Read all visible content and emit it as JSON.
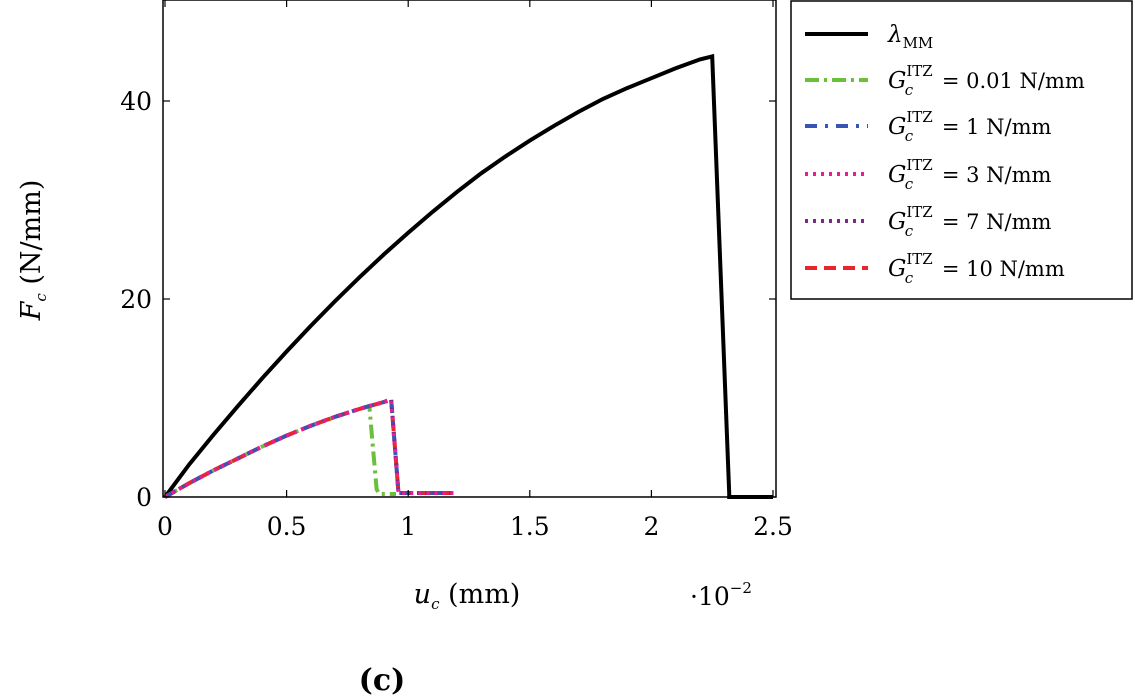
{
  "chart_data": {
    "type": "line",
    "title": "",
    "panel_label": "(c)",
    "xlabel": {
      "symbol": "u",
      "subscript": "c",
      "unit": " (mm)"
    },
    "ylabel": {
      "symbol": "F",
      "subscript": "c",
      "unit": " (N/mm)"
    },
    "x_scale_note": {
      "prefix": "·10",
      "exponent": "−2"
    },
    "xlim": [
      0,
      2.5
    ],
    "ylim": [
      0,
      50
    ],
    "xticks": [
      0,
      0.5,
      1,
      1.5,
      2,
      2.5
    ],
    "xtick_labels": [
      "0",
      "0.5",
      "1",
      "1.5",
      "2",
      "2.5"
    ],
    "yticks": [
      0,
      20,
      40
    ],
    "ytick_labels": [
      "0",
      "20",
      "40"
    ],
    "grid": false,
    "legend_position": "outside-right-top",
    "series": [
      {
        "name": "λMM",
        "legend_symbol": "λ",
        "legend_sub": "MM",
        "legend_rest": "",
        "color": "#000000",
        "dash": "solid",
        "width": 4,
        "x": [
          0,
          0.1,
          0.2,
          0.3,
          0.4,
          0.5,
          0.6,
          0.7,
          0.8,
          0.9,
          1.0,
          1.1,
          1.2,
          1.3,
          1.4,
          1.5,
          1.6,
          1.7,
          1.8,
          1.9,
          2.0,
          2.1,
          2.2,
          2.25,
          2.32,
          2.32,
          2.5
        ],
        "y": [
          0,
          3.3,
          6.3,
          9.2,
          12.0,
          14.7,
          17.3,
          19.8,
          22.2,
          24.5,
          26.7,
          28.8,
          30.8,
          32.7,
          34.4,
          36.0,
          37.5,
          38.9,
          40.2,
          41.3,
          42.3,
          43.3,
          44.2,
          44.5,
          0.4,
          0,
          0
        ]
      },
      {
        "name": "G_c^ITZ = 0.01 N/mm",
        "legend_symbol": "G",
        "legend_sub": "c",
        "legend_sup": "ITZ",
        "legend_rest": " = 0.01 N/mm",
        "color": "#6bbf3a",
        "dash": "dashdot",
        "width": 4,
        "x": [
          0,
          0.1,
          0.2,
          0.3,
          0.4,
          0.5,
          0.6,
          0.7,
          0.8,
          0.84,
          0.87,
          0.88,
          0.95
        ],
        "y": [
          0,
          1.4,
          2.7,
          3.9,
          5.1,
          6.2,
          7.2,
          8.1,
          8.9,
          9.2,
          0.8,
          0.3,
          0.3
        ]
      },
      {
        "name": "G_c^ITZ = 1 N/mm",
        "legend_symbol": "G",
        "legend_sub": "c",
        "legend_sup": "ITZ",
        "legend_rest": " = 1 N/mm",
        "color": "#3a54b4",
        "dash": "dashdotwide",
        "width": 4,
        "x": [
          0,
          0.1,
          0.2,
          0.3,
          0.4,
          0.5,
          0.6,
          0.7,
          0.8,
          0.9,
          0.93,
          0.96,
          1.0,
          1.1,
          1.2
        ],
        "y": [
          0,
          1.4,
          2.7,
          3.9,
          5.1,
          6.2,
          7.2,
          8.1,
          8.9,
          9.6,
          9.8,
          0.4,
          0.4,
          0.4,
          0.4
        ]
      },
      {
        "name": "G_c^ITZ = 3 N/mm",
        "legend_symbol": "G",
        "legend_sub": "c",
        "legend_sup": "ITZ",
        "legend_rest": " = 3 N/mm",
        "color": "#ec1b8f",
        "dash": "dotted",
        "width": 4,
        "x": [
          0,
          0.1,
          0.2,
          0.3,
          0.4,
          0.5,
          0.6,
          0.7,
          0.8,
          0.9,
          0.93,
          0.96,
          1.0,
          1.1,
          1.2
        ],
        "y": [
          0,
          1.4,
          2.7,
          3.9,
          5.1,
          6.2,
          7.2,
          8.1,
          8.9,
          9.6,
          9.8,
          0.4,
          0.4,
          0.4,
          0.4
        ]
      },
      {
        "name": "G_c^ITZ = 7 N/mm",
        "legend_symbol": "G",
        "legend_sub": "c",
        "legend_sup": "ITZ",
        "legend_rest": " = 7 N/mm",
        "color": "#7b2a8a",
        "dash": "dotted",
        "width": 4,
        "x": [
          0,
          0.1,
          0.2,
          0.3,
          0.4,
          0.5,
          0.6,
          0.7,
          0.8,
          0.9,
          0.93,
          0.96,
          1.0,
          1.1,
          1.2
        ],
        "y": [
          0,
          1.4,
          2.7,
          3.9,
          5.1,
          6.2,
          7.2,
          8.1,
          8.9,
          9.6,
          9.9,
          0.4,
          0.4,
          0.4,
          0.4
        ]
      },
      {
        "name": "G_c^ITZ = 10 N/mm",
        "legend_symbol": "G",
        "legend_sub": "c",
        "legend_sup": "ITZ",
        "legend_rest": " = 10 N/mm",
        "color": "#e8262b",
        "dash": "dashed",
        "width": 4,
        "x": [
          0,
          0.1,
          0.2,
          0.3,
          0.4,
          0.5,
          0.6,
          0.7,
          0.8,
          0.9,
          0.93,
          0.96,
          1.0,
          1.1,
          1.2
        ],
        "y": [
          0,
          1.4,
          2.7,
          3.9,
          5.1,
          6.2,
          7.2,
          8.1,
          8.9,
          9.6,
          9.8,
          0.4,
          0.4,
          0.4,
          0.4
        ]
      }
    ]
  }
}
